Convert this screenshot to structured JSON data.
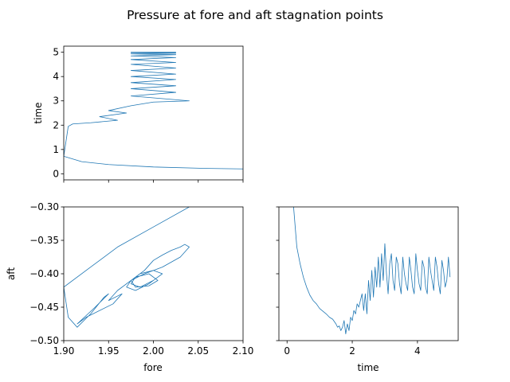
{
  "figure": {
    "title": "Pressure at fore and aft stagnation points"
  },
  "colors": {
    "series": "#1f77b4",
    "axes": "#000000"
  },
  "chart_data": [
    {
      "type": "line",
      "panel": "top-left",
      "xlabel": "",
      "ylabel": "time",
      "xlim": [
        1.9,
        2.1
      ],
      "ylim": [
        -0.25,
        5.25
      ],
      "xticks": [
        1.9,
        1.95,
        2.0,
        2.05,
        2.1
      ],
      "xtick_labels_shown": false,
      "yticks": [
        0,
        1,
        2,
        3,
        4,
        5
      ],
      "ytick_labels": [
        "0",
        "1",
        "2",
        "3",
        "4",
        "5"
      ],
      "series": [
        {
          "x": [
            2.1,
            2.06,
            2.0,
            1.95,
            1.92,
            1.9,
            1.905,
            1.91,
            1.93,
            1.96,
            1.94,
            1.97,
            1.95,
            1.975,
            2.0,
            2.04,
            1.975,
            2.025,
            1.975,
            2.025,
            1.975,
            2.025,
            1.975,
            2.025,
            1.975,
            2.025,
            1.975,
            2.025,
            1.975,
            2.025,
            1.975,
            2.025,
            1.975,
            2.025,
            1.975,
            2.025,
            1.975,
            2.025
          ],
          "y": [
            0.2,
            0.22,
            0.28,
            0.38,
            0.5,
            0.72,
            1.95,
            2.05,
            2.1,
            2.2,
            2.35,
            2.5,
            2.6,
            2.8,
            2.95,
            3.0,
            3.2,
            3.35,
            3.5,
            3.62,
            3.75,
            3.88,
            4.0,
            4.1,
            4.25,
            4.35,
            4.5,
            4.58,
            4.7,
            4.78,
            4.85,
            4.9,
            4.93,
            4.96,
            4.98,
            4.99,
            5.0,
            5.0
          ]
        }
      ]
    },
    {
      "type": "line",
      "panel": "bottom-left",
      "xlabel": "fore",
      "ylabel": "aft",
      "xlim": [
        1.9,
        2.1
      ],
      "ylim": [
        -0.5,
        -0.3
      ],
      "xticks": [
        1.9,
        1.95,
        2.0,
        2.05,
        2.1
      ],
      "xtick_labels": [
        "1.90",
        "1.95",
        "2.00",
        "2.05",
        "2.10"
      ],
      "yticks": [
        -0.5,
        -0.45,
        -0.4,
        -0.35,
        -0.3
      ],
      "ytick_labels": [
        "−0.50",
        "−0.45",
        "−0.40",
        "−0.35",
        "−0.30"
      ],
      "series": [
        {
          "x": [
            2.04,
            2.0,
            1.96,
            1.93,
            1.9,
            1.905,
            1.915,
            1.93,
            1.945,
            1.95,
            1.935,
            1.915,
            1.925,
            1.955,
            1.965,
            1.95,
            1.96,
            1.975,
            1.99,
            2.0,
            2.01,
            2.02,
            2.03,
            2.035,
            2.04,
            2.03,
            2.01,
            1.99,
            1.975,
            1.97,
            1.98,
            1.995,
            2.005,
            2.01,
            2.0,
            1.985,
            1.975,
            1.98,
            1.995,
            2.005,
            1.995,
            1.98,
            1.975,
            1.985,
            2.0
          ],
          "y": [
            -0.3,
            -0.33,
            -0.36,
            -0.39,
            -0.42,
            -0.465,
            -0.48,
            -0.46,
            -0.435,
            -0.43,
            -0.45,
            -0.475,
            -0.465,
            -0.445,
            -0.43,
            -0.44,
            -0.425,
            -0.41,
            -0.395,
            -0.38,
            -0.372,
            -0.365,
            -0.36,
            -0.356,
            -0.36,
            -0.375,
            -0.39,
            -0.4,
            -0.41,
            -0.42,
            -0.425,
            -0.415,
            -0.405,
            -0.4,
            -0.395,
            -0.4,
            -0.41,
            -0.42,
            -0.418,
            -0.41,
            -0.4,
            -0.405,
            -0.415,
            -0.42,
            -0.41
          ]
        }
      ]
    },
    {
      "type": "line",
      "panel": "bottom-right",
      "xlabel": "time",
      "ylabel": "",
      "xlim": [
        -0.25,
        5.25
      ],
      "ylim": [
        -0.5,
        -0.3
      ],
      "xticks": [
        0,
        2,
        4
      ],
      "xtick_labels": [
        "0",
        "2",
        "4"
      ],
      "yticks": [
        -0.5,
        -0.45,
        -0.4,
        -0.35,
        -0.3
      ],
      "ytick_labels_shown": false,
      "series": [
        {
          "x": [
            0.2,
            0.25,
            0.3,
            0.4,
            0.5,
            0.6,
            0.7,
            0.8,
            0.9,
            1.0,
            1.1,
            1.2,
            1.3,
            1.4,
            1.5,
            1.55,
            1.6,
            1.65,
            1.7,
            1.75,
            1.8,
            1.85,
            1.9,
            1.95,
            2.0,
            2.05,
            2.1,
            2.15,
            2.2,
            2.25,
            2.3,
            2.35,
            2.4,
            2.45,
            2.5,
            2.55,
            2.6,
            2.65,
            2.7,
            2.75,
            2.8,
            2.85,
            2.9,
            2.95,
            3.0,
            3.05,
            3.1,
            3.15,
            3.2,
            3.25,
            3.3,
            3.35,
            3.4,
            3.45,
            3.5,
            3.55,
            3.6,
            3.65,
            3.7,
            3.75,
            3.8,
            3.85,
            3.9,
            3.95,
            4.0,
            4.05,
            4.1,
            4.15,
            4.2,
            4.25,
            4.3,
            4.35,
            4.4,
            4.45,
            4.5,
            4.55,
            4.6,
            4.65,
            4.7,
            4.75,
            4.8,
            4.85,
            4.9,
            4.95,
            5.0
          ],
          "y": [
            -0.3,
            -0.33,
            -0.36,
            -0.385,
            -0.405,
            -0.42,
            -0.432,
            -0.44,
            -0.445,
            -0.452,
            -0.456,
            -0.46,
            -0.465,
            -0.468,
            -0.475,
            -0.48,
            -0.478,
            -0.485,
            -0.48,
            -0.47,
            -0.49,
            -0.475,
            -0.485,
            -0.465,
            -0.47,
            -0.455,
            -0.46,
            -0.445,
            -0.45,
            -0.44,
            -0.43,
            -0.455,
            -0.43,
            -0.46,
            -0.41,
            -0.44,
            -0.395,
            -0.435,
            -0.39,
            -0.42,
            -0.375,
            -0.42,
            -0.37,
            -0.41,
            -0.355,
            -0.4,
            -0.43,
            -0.385,
            -0.37,
            -0.41,
            -0.425,
            -0.375,
            -0.385,
            -0.415,
            -0.43,
            -0.375,
            -0.4,
            -0.415,
            -0.425,
            -0.375,
            -0.395,
            -0.42,
            -0.43,
            -0.37,
            -0.395,
            -0.415,
            -0.425,
            -0.38,
            -0.39,
            -0.42,
            -0.43,
            -0.375,
            -0.395,
            -0.41,
            -0.425,
            -0.375,
            -0.39,
            -0.415,
            -0.43,
            -0.38,
            -0.395,
            -0.42,
            -0.41,
            -0.375,
            -0.405
          ]
        }
      ]
    }
  ]
}
